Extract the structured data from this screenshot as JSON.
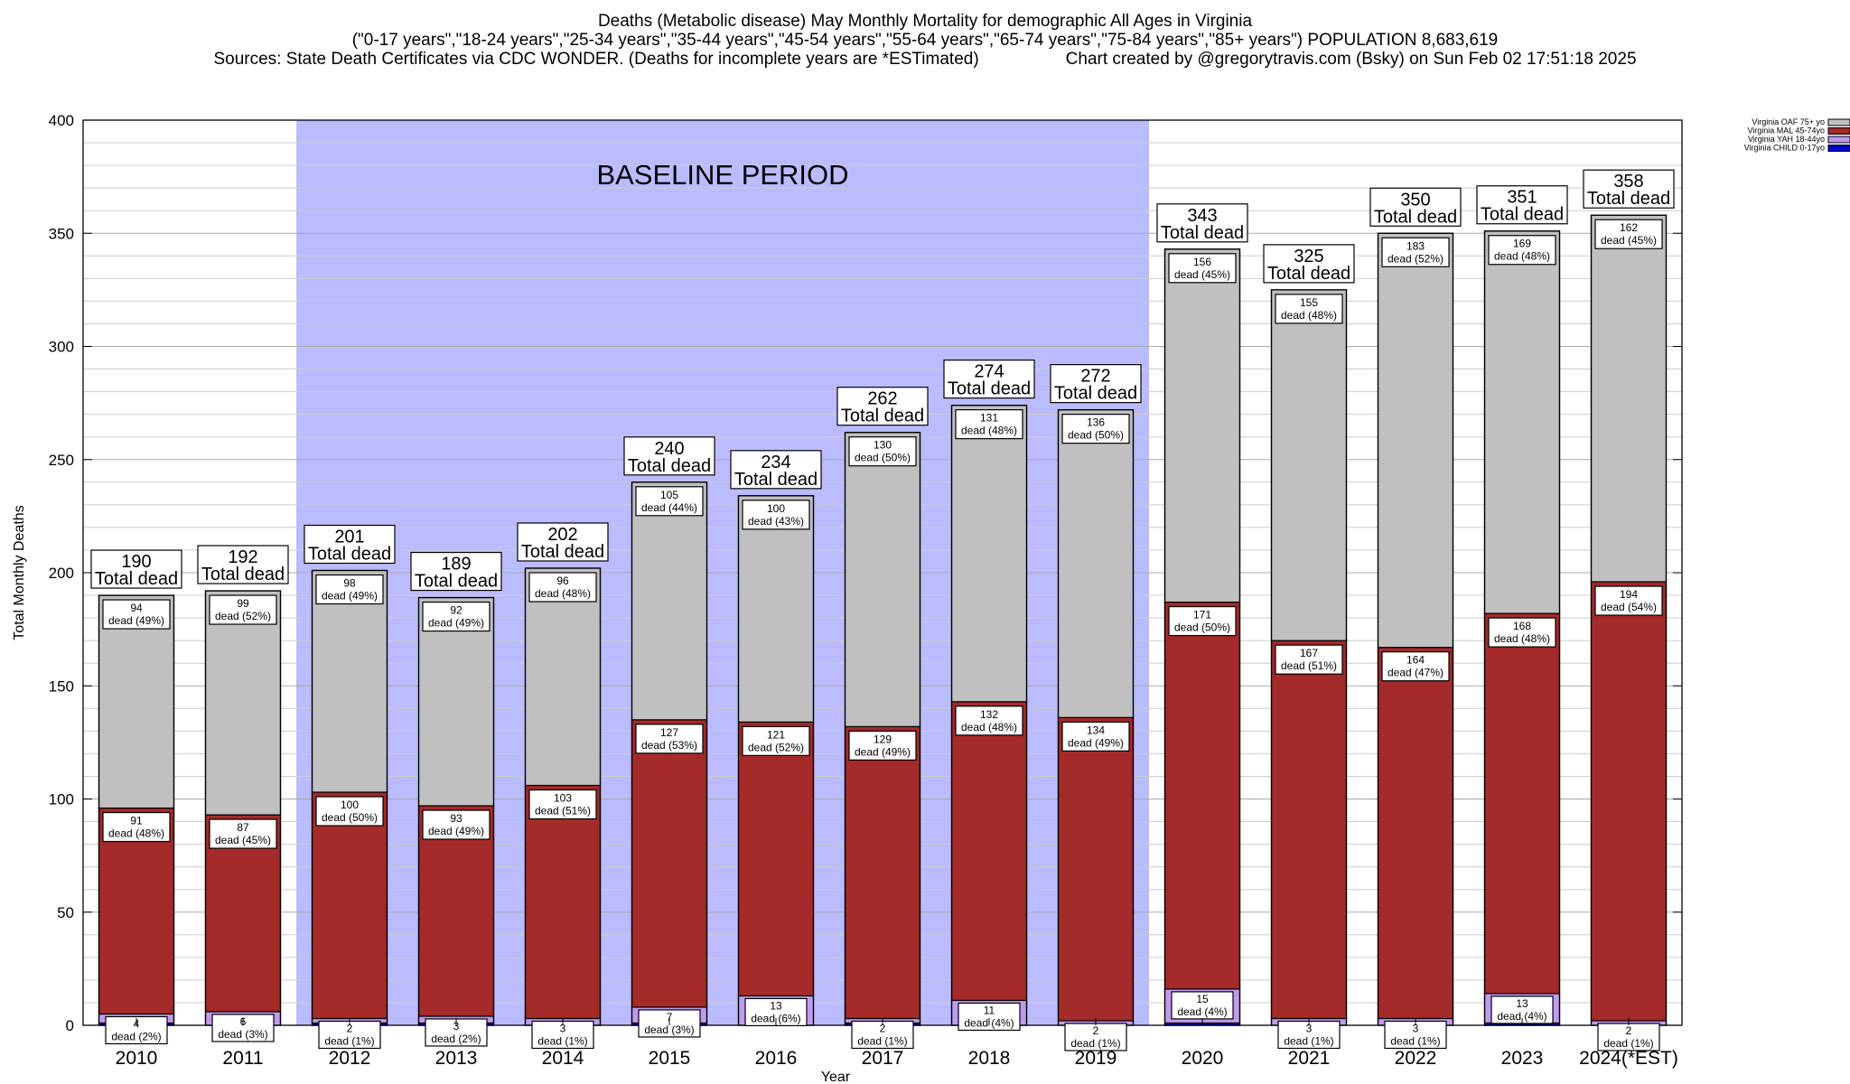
{
  "header": {
    "title": "Deaths (Metabolic disease) May Monthly Mortality for demographic All Ages in Virginia",
    "subtitle": "(\"0-17 years\",\"18-24 years\",\"25-34 years\",\"35-44 years\",\"45-54 years\",\"55-64 years\",\"65-74 years\",\"75-84 years\",\"85+ years\") POPULATION 8,683,619",
    "sources": "Sources: State Death Certificates via CDC WONDER. (Deaths for incomplete years are *ESTimated)",
    "credit": "Chart created by @gregorytravis.com (Bsky) on Sun Feb 02 17:51:18 2025"
  },
  "chart_data": {
    "type": "bar",
    "stacked": true,
    "xlabel": "Year",
    "ylabel": "Total Monthly Deaths",
    "ylim": [
      0,
      400
    ],
    "yticks": [
      0,
      50,
      100,
      150,
      200,
      250,
      300,
      350,
      400
    ],
    "categories": [
      "2010",
      "2011",
      "2012",
      "2013",
      "2014",
      "2015",
      "2016",
      "2017",
      "2018",
      "2019",
      "2020",
      "2021",
      "2022",
      "2023",
      "2024(*EST)"
    ],
    "totals": [
      190,
      192,
      201,
      189,
      202,
      240,
      234,
      262,
      274,
      272,
      343,
      325,
      350,
      351,
      358
    ],
    "total_suffix": "Total dead",
    "series": [
      {
        "name": "Virginia CHILD 0-17yo",
        "color": "#0000cc",
        "values": [
          1,
          0,
          1,
          1,
          0,
          1,
          0,
          1,
          0,
          0,
          1,
          0,
          0,
          1,
          0
        ]
      },
      {
        "name": "Virginia YAH 18-44yo",
        "color": "#c09af0",
        "values": [
          4,
          6,
          2,
          3,
          3,
          7,
          13,
          2,
          11,
          2,
          15,
          3,
          3,
          13,
          2
        ],
        "labels": [
          "4\ndead (2%)",
          "6\ndead (3%)",
          "2\ndead (1%)",
          "3\ndead (2%)",
          "3\ndead (1%)",
          "7\ndead (3%)",
          "13\ndead (6%)",
          "2\ndead (1%)",
          "11\ndead (4%)",
          "2\ndead (1%)",
          "15\ndead (4%)",
          "3\ndead (1%)",
          "3\ndead (1%)",
          "13\ndead (4%)",
          "2\ndead (1%)"
        ]
      },
      {
        "name": "Virginia MAL 45-74yo",
        "color": "#a52a2a",
        "values": [
          91,
          87,
          100,
          93,
          103,
          127,
          121,
          129,
          132,
          134,
          171,
          167,
          164,
          168,
          194
        ],
        "labels": [
          "91\ndead (48%)",
          "87\ndead (45%)",
          "100\ndead (50%)",
          "93\ndead (49%)",
          "103\ndead (51%)",
          "127\ndead (53%)",
          "121\ndead (52%)",
          "129\ndead (49%)",
          "132\ndead (48%)",
          "134\ndead (49%)",
          "171\ndead (50%)",
          "167\ndead (51%)",
          "164\ndead (47%)",
          "168\ndead (48%)",
          "194\ndead (54%)"
        ]
      },
      {
        "name": "Virginia OAF 75+ yo",
        "color": "#c0c0c0",
        "values": [
          94,
          99,
          98,
          92,
          96,
          105,
          100,
          130,
          131,
          136,
          156,
          155,
          183,
          169,
          162
        ],
        "labels": [
          "94\ndead (49%)",
          "99\ndead (52%)",
          "98\ndead (49%)",
          "92\ndead (49%)",
          "96\ndead (48%)",
          "105\ndead (44%)",
          "100\ndead (43%)",
          "130\ndead (50%)",
          "131\ndead (48%)",
          "136\ndead (50%)",
          "156\ndead (45%)",
          "155\ndead (48%)",
          "183\ndead (52%)",
          "169\ndead (48%)",
          "162\ndead (45%)"
        ]
      }
    ],
    "legend_order": [
      "Virginia OAF 75+ yo",
      "Virginia MAL 45-74yo",
      "Virginia YAH 18-44yo",
      "Virginia CHILD 0-17yo"
    ],
    "legend_position": "top-right",
    "annotation": {
      "text": "BASELINE PERIOD",
      "x_start": "2012",
      "x_end": "2019",
      "color": "#bbbbff"
    },
    "grid": true
  }
}
